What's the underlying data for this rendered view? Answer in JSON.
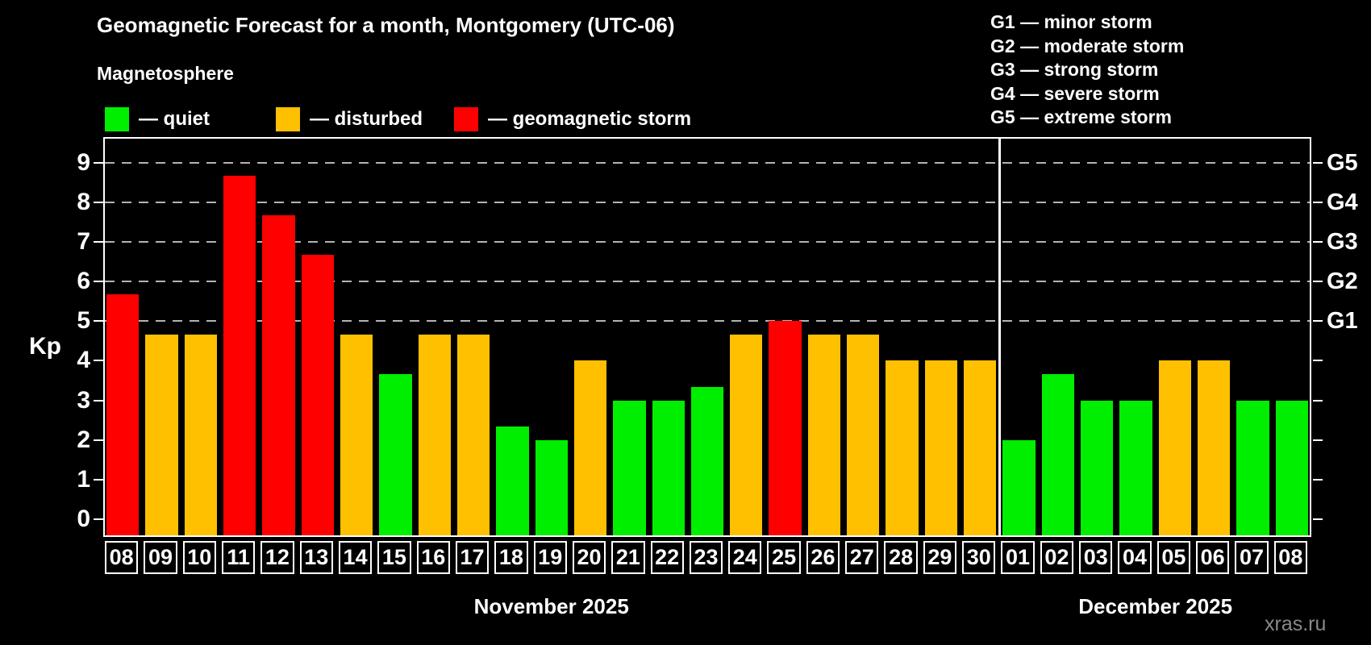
{
  "header": {
    "title": "Geomagnetic Forecast for a month, Montgomery (UTC-06)",
    "subtitle": "Magnetosphere",
    "watermark": "xras.ru"
  },
  "state_legend": [
    {
      "key": "quiet",
      "label": "— quiet",
      "color": "#00ee00"
    },
    {
      "key": "disturbed",
      "label": "— disturbed",
      "color": "#ffc000"
    },
    {
      "key": "storm",
      "label": "— geomagnetic storm",
      "color": "#ff0000"
    }
  ],
  "storm_scale_legend": [
    "G1 — minor storm",
    "G2 — moderate storm",
    "G3 — strong storm",
    "G4 — severe storm",
    "G5 — extreme storm"
  ],
  "chart_data": {
    "type": "bar",
    "title": "Geomagnetic Forecast for a month, Montgomery (UTC-06)",
    "ylabel": "Kp",
    "ylim": [
      -0.45,
      9.65
    ],
    "y_ticks": [
      0,
      1,
      2,
      3,
      4,
      5,
      6,
      7,
      8,
      9
    ],
    "gridline_kp_levels": [
      5,
      6,
      7,
      8,
      9
    ],
    "right_axis": [
      {
        "label": "G1",
        "kp": 5
      },
      {
        "label": "G2",
        "kp": 6
      },
      {
        "label": "G3",
        "kp": 7
      },
      {
        "label": "G4",
        "kp": 8
      },
      {
        "label": "G5",
        "kp": 9
      }
    ],
    "level_colors": {
      "quiet": "#00ee00",
      "disturbed": "#ffc000",
      "storm": "#ff0000"
    },
    "grid": true,
    "legend_position": "top-left",
    "months": [
      {
        "label": "November 2025",
        "days": [
          {
            "day": "08",
            "kp": 5.67,
            "level": "storm"
          },
          {
            "day": "09",
            "kp": 4.67,
            "level": "disturbed"
          },
          {
            "day": "10",
            "kp": 4.67,
            "level": "disturbed"
          },
          {
            "day": "11",
            "kp": 8.67,
            "level": "storm"
          },
          {
            "day": "12",
            "kp": 7.67,
            "level": "storm"
          },
          {
            "day": "13",
            "kp": 6.67,
            "level": "storm"
          },
          {
            "day": "14",
            "kp": 4.67,
            "level": "disturbed"
          },
          {
            "day": "15",
            "kp": 3.67,
            "level": "quiet"
          },
          {
            "day": "16",
            "kp": 4.67,
            "level": "disturbed"
          },
          {
            "day": "17",
            "kp": 4.67,
            "level": "disturbed"
          },
          {
            "day": "18",
            "kp": 2.33,
            "level": "quiet"
          },
          {
            "day": "19",
            "kp": 2.0,
            "level": "quiet"
          },
          {
            "day": "20",
            "kp": 4.0,
            "level": "disturbed"
          },
          {
            "day": "21",
            "kp": 3.0,
            "level": "quiet"
          },
          {
            "day": "22",
            "kp": 3.0,
            "level": "quiet"
          },
          {
            "day": "23",
            "kp": 3.33,
            "level": "quiet"
          },
          {
            "day": "24",
            "kp": 4.67,
            "level": "disturbed"
          },
          {
            "day": "25",
            "kp": 5.0,
            "level": "storm"
          },
          {
            "day": "26",
            "kp": 4.67,
            "level": "disturbed"
          },
          {
            "day": "27",
            "kp": 4.67,
            "level": "disturbed"
          },
          {
            "day": "28",
            "kp": 4.0,
            "level": "disturbed"
          },
          {
            "day": "29",
            "kp": 4.0,
            "level": "disturbed"
          },
          {
            "day": "30",
            "kp": 4.0,
            "level": "disturbed"
          }
        ]
      },
      {
        "label": "December 2025",
        "days": [
          {
            "day": "01",
            "kp": 2.0,
            "level": "quiet"
          },
          {
            "day": "02",
            "kp": 3.67,
            "level": "quiet"
          },
          {
            "day": "03",
            "kp": 3.0,
            "level": "quiet"
          },
          {
            "day": "04",
            "kp": 3.0,
            "level": "quiet"
          },
          {
            "day": "05",
            "kp": 4.0,
            "level": "disturbed"
          },
          {
            "day": "06",
            "kp": 4.0,
            "level": "disturbed"
          },
          {
            "day": "07",
            "kp": 3.0,
            "level": "quiet"
          },
          {
            "day": "08",
            "kp": 3.0,
            "level": "quiet"
          }
        ]
      }
    ]
  }
}
